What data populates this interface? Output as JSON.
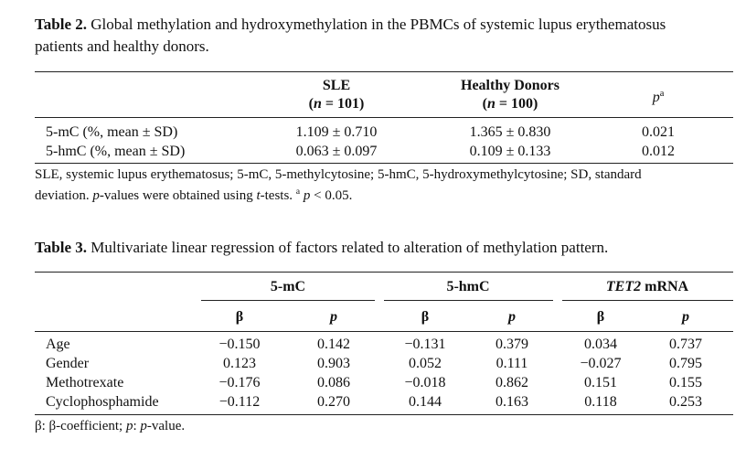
{
  "table2": {
    "caption": [
      [
        {
          "text": "Table 2.",
          "style": "bold"
        },
        {
          "text": " Global methylation and hydroxymethylation in the PBMCs of systemic lupus erythematosus"
        }
      ],
      [
        {
          "text": "patients and healthy donors."
        }
      ]
    ],
    "columns": [
      {
        "name": "SLE",
        "n": [
          {
            "text": "("
          },
          {
            "text": "n",
            "style": "italic"
          },
          {
            "text": " = 101)"
          }
        ]
      },
      {
        "name": "Healthy Donors",
        "n": [
          {
            "text": "("
          },
          {
            "text": "n",
            "style": "italic"
          },
          {
            "text": " = 100)"
          }
        ]
      },
      {
        "name": [
          {
            "text": "p",
            "style": "italic"
          },
          {
            "text": "a",
            "style": "sup"
          }
        ]
      }
    ],
    "rows": [
      [
        "5-mC (%, mean ± SD)",
        "1.109 ± 0.710",
        "1.365 ± 0.830",
        "0.021"
      ],
      [
        "5-hmC (%, mean ± SD)",
        "0.063 ± 0.097",
        "0.109 ± 0.133",
        "0.012"
      ]
    ],
    "footnote": [
      [
        {
          "text": "SLE, systemic lupus erythematosus; 5-mC, 5-methylcytosine; 5-hmC, 5-hydroxymethylcytosine; SD, standard"
        }
      ],
      [
        {
          "text": "deviation. "
        },
        {
          "text": "p",
          "style": "italic"
        },
        {
          "text": "-values were obtained using "
        },
        {
          "text": "t",
          "style": "italic"
        },
        {
          "text": "-tests. "
        },
        {
          "text": "a",
          "style": "sup"
        },
        {
          "text": " "
        },
        {
          "text": "p",
          "style": "italic"
        },
        {
          "text": " < 0.05."
        }
      ]
    ]
  },
  "table3": {
    "caption": [
      {
        "text": "Table 3.",
        "style": "bold"
      },
      {
        "text": " Multivariate linear regression of factors related to alteration of methylation pattern."
      }
    ],
    "groups": [
      "5-mC",
      "5-hmC",
      [
        {
          "text": "TET2",
          "style": "italic"
        },
        {
          "text": " mRNA"
        }
      ]
    ],
    "subheaders": [
      "β",
      [
        {
          "text": "p",
          "style": "italic"
        }
      ],
      "β",
      [
        {
          "text": "p",
          "style": "italic"
        }
      ],
      "β",
      [
        {
          "text": "p",
          "style": "italic"
        }
      ]
    ],
    "rows": [
      [
        "Age",
        "−0.150",
        "0.142",
        "−0.131",
        "0.379",
        "0.034",
        "0.737"
      ],
      [
        "Gender",
        "0.123",
        "0.903",
        "0.052",
        "0.111",
        "−0.027",
        "0.795"
      ],
      [
        "Methotrexate",
        "−0.176",
        "0.086",
        "−0.018",
        "0.862",
        "0.151",
        "0.155"
      ],
      [
        "Cyclophosphamide",
        "−0.112",
        "0.270",
        "0.144",
        "0.163",
        "0.118",
        "0.253"
      ]
    ],
    "footnote": [
      {
        "text": "β: β-coefficient; "
      },
      {
        "text": "p",
        "style": "italic"
      },
      {
        "text": ": "
      },
      {
        "text": "p",
        "style": "italic"
      },
      {
        "text": "-value."
      }
    ]
  }
}
